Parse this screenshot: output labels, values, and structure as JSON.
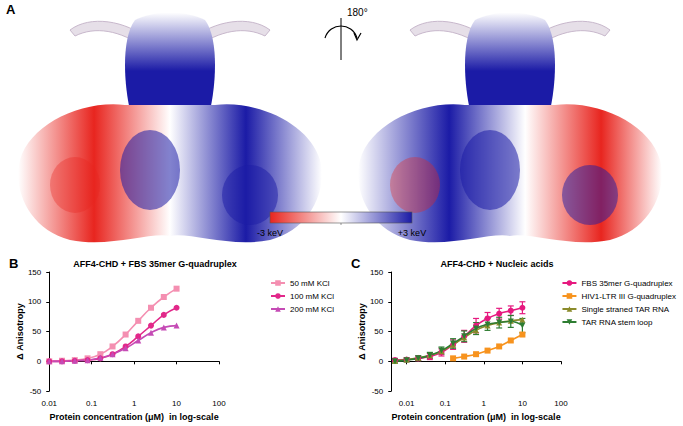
{
  "panel_a": {
    "label": "A",
    "rotation_label": "180°",
    "colorbar": {
      "range": [
        -3,
        3
      ],
      "labels": [
        "-3 keV",
        "+3 keV"
      ],
      "colors": [
        "#e8251f",
        "#ffffff",
        "#1b1ba6"
      ]
    }
  },
  "chart_data": [
    {
      "type": "line",
      "annotations": [
        "B"
      ],
      "title": "AFF4-CHD + FBS 35mer G-quadruplex",
      "x_label": "Protein concentration (μM)  in log-scale",
      "y_label": "Δ Anisotropy",
      "log": "x",
      "grid": false,
      "legend": "right",
      "xlim": [
        0.01,
        100
      ],
      "xticks": [
        0.01,
        0.1,
        1,
        10,
        100
      ],
      "ylim": [
        -50,
        150
      ],
      "yticks": [
        -50,
        0,
        50,
        100,
        150
      ],
      "x": [
        0.01,
        0.02,
        0.04,
        0.08,
        0.16,
        0.31,
        0.63,
        1.25,
        2.5,
        5,
        10
      ],
      "series": [
        {
          "name": "50 mM KCl",
          "color": "#f48fb1",
          "marker": "square",
          "line_style": "solid",
          "values": [
            0,
            1,
            2,
            5,
            12,
            25,
            45,
            68,
            90,
            108,
            122
          ]
        },
        {
          "name": "100 mM KCl",
          "color": "#e2288a",
          "marker": "circle",
          "line_style": "solid",
          "values": [
            0,
            0,
            1,
            2,
            5,
            12,
            25,
            42,
            60,
            78,
            90
          ]
        },
        {
          "name": "200 mM KCl",
          "color": "#c54bb5",
          "marker": "triangle",
          "line_style": "solid",
          "values": [
            0,
            0,
            1,
            2,
            6,
            12,
            22,
            35,
            48,
            57,
            60
          ]
        }
      ]
    },
    {
      "type": "line",
      "annotations": [
        "C"
      ],
      "title": "AFF4-CHD + Nucleic acids",
      "x_label": "Protein concentration (μM)  in log-scale",
      "y_label": "Δ Anisotropy",
      "log": "x",
      "grid": false,
      "legend": "right",
      "xlim": [
        0.004,
        100
      ],
      "xticks": [
        0.01,
        0.1,
        1,
        10,
        100
      ],
      "ylim": [
        -50,
        150
      ],
      "yticks": [
        -50,
        0,
        50,
        100,
        150
      ],
      "x": [
        0.005,
        0.01,
        0.02,
        0.04,
        0.08,
        0.16,
        0.31,
        0.63,
        1.25,
        2.5,
        5,
        10
      ],
      "series": [
        {
          "name": "FBS 35mer G-quadruplex",
          "color": "#e6197f",
          "marker": "circle",
          "line_style": "solid",
          "values": [
            2,
            3,
            5,
            8,
            15,
            28,
            42,
            60,
            72,
            80,
            85,
            90
          ],
          "errors": [
            3,
            3,
            4,
            5,
            6,
            8,
            10,
            12,
            10,
            9,
            8,
            10
          ]
        },
        {
          "name": "HIV1-LTR III G-quadruplex",
          "color": "#f7931e",
          "marker": "square",
          "line_style": "solid",
          "values": [
            null,
            null,
            null,
            null,
            null,
            5,
            8,
            12,
            18,
            25,
            35,
            45
          ]
        },
        {
          "name": "Single straned TAR RNA",
          "color": "#8b8b2b",
          "marker": "triangle",
          "line_style": "solid",
          "values": [
            1,
            3,
            6,
            10,
            17,
            28,
            40,
            52,
            60,
            65,
            68,
            70
          ]
        },
        {
          "name": "TAR RNA stem loop",
          "color": "#2e7d32",
          "marker": "inverted_triangle",
          "line_style": "solid",
          "values": [
            0,
            2,
            5,
            10,
            18,
            30,
            42,
            55,
            62,
            65,
            67,
            60
          ],
          "errors": [
            3,
            3,
            4,
            5,
            6,
            8,
            9,
            10,
            10,
            9,
            10,
            12
          ]
        }
      ]
    }
  ]
}
